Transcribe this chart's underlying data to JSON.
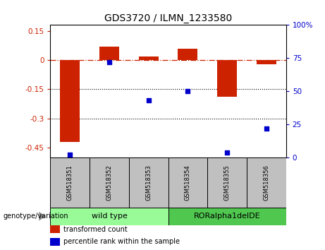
{
  "title": "GDS3720 / ILMN_1233580",
  "samples": [
    "GSM518351",
    "GSM518352",
    "GSM518353",
    "GSM518354",
    "GSM518355",
    "GSM518356"
  ],
  "red_bars": [
    -0.42,
    0.07,
    0.02,
    0.06,
    -0.19,
    -0.02
  ],
  "blue_dots": [
    2,
    72,
    43,
    50,
    4,
    22
  ],
  "ylim_left": [
    -0.5,
    0.18
  ],
  "ylim_right": [
    0,
    100
  ],
  "yticks_left": [
    0.15,
    0.0,
    -0.15,
    -0.3,
    -0.45
  ],
  "yticks_right": [
    100,
    75,
    50,
    25,
    0
  ],
  "hlines_dotted": [
    -0.15,
    -0.3
  ],
  "hline_dashdot": 0.0,
  "groups": [
    {
      "label": "wild type",
      "color": "#98FB98",
      "start": 0,
      "end": 3
    },
    {
      "label": "RORalpha1delDE",
      "color": "#50C850",
      "start": 3,
      "end": 6
    }
  ],
  "bar_color": "#CC2200",
  "dot_color": "#0000CC",
  "legend_labels": [
    "transformed count",
    "percentile rank within the sample"
  ],
  "legend_colors": [
    "#CC2200",
    "#0000CC"
  ],
  "genotype_label": "genotype/variation",
  "sample_box_color": "#C0C0C0",
  "bar_width": 0.5
}
